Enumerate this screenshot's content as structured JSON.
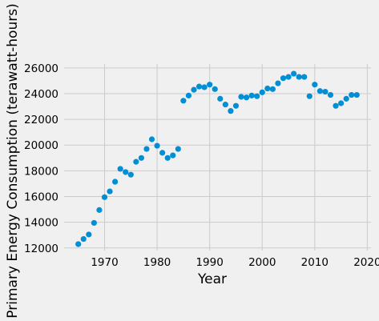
{
  "chart_data": {
    "type": "scatter",
    "title": "",
    "xlabel": "Year",
    "ylabel": "Primary Energy Consumption (terawatt-hours)",
    "xlim": [
      1962.3,
      2020.7
    ],
    "ylim": [
      11800,
      26300
    ],
    "x_ticks": [
      1970,
      1980,
      1990,
      2000,
      2010,
      2020
    ],
    "x_tick_labels": [
      "1970",
      "1980",
      "1990",
      "2000",
      "2010",
      "2020"
    ],
    "y_ticks": [
      12000,
      14000,
      16000,
      18000,
      20000,
      22000,
      24000,
      26000
    ],
    "y_tick_labels": [
      "12000",
      "14000",
      "16000",
      "18000",
      "20000",
      "22000",
      "24000",
      "26000"
    ],
    "grid": true,
    "legend": "none",
    "colors": {
      "background": "#f0f0f0",
      "grid": "#cbcbcb",
      "marker": "#008fd5"
    },
    "series": [
      {
        "x": [
          1965,
          1966,
          1967,
          1968,
          1969,
          1970,
          1971,
          1972,
          1973,
          1974,
          1975,
          1976,
          1977,
          1978,
          1979,
          1980,
          1981,
          1982,
          1983,
          1984,
          1985,
          1986,
          1987,
          1988,
          1989,
          1990,
          1991,
          1992,
          1993,
          1994,
          1995,
          1996,
          1997,
          1998,
          1999,
          2000,
          2001,
          2002,
          2003,
          2004,
          2005,
          2006,
          2007,
          2008,
          2009,
          2010,
          2011,
          2012,
          2013,
          2014,
          2015,
          2016,
          2017,
          2018
        ],
        "y": [
          12300,
          12700,
          13050,
          13950,
          14950,
          15950,
          16400,
          17150,
          18150,
          17900,
          17700,
          18700,
          19000,
          19700,
          20450,
          19950,
          19400,
          19000,
          19200,
          19700,
          23450,
          23850,
          24300,
          24550,
          24500,
          24700,
          24350,
          23600,
          23150,
          22650,
          23050,
          23750,
          23700,
          23850,
          23800,
          24100,
          24400,
          24350,
          24800,
          25200,
          25300,
          25550,
          25300,
          25300,
          23800,
          24700,
          24200,
          24150,
          23900,
          23050,
          23250,
          23600,
          23900,
          23900
        ]
      }
    ]
  }
}
